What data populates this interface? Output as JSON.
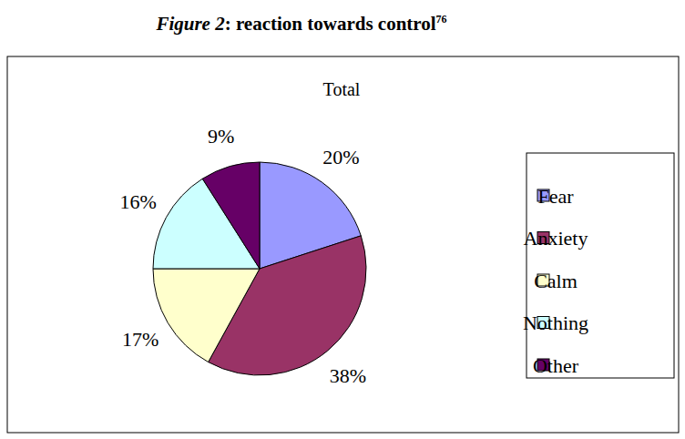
{
  "chart_data": {
    "type": "pie",
    "title": "Figure 2: reaction towards control",
    "title_footnote": "76",
    "subtitle": "Total",
    "categories": [
      "Fear",
      "Anxiety",
      "Calm",
      "Nothing",
      "Other"
    ],
    "values": [
      20,
      38,
      17,
      16,
      9
    ],
    "value_labels": [
      "20%",
      "38%",
      "17%",
      "16%",
      "9%"
    ],
    "colors": [
      "#9999ff",
      "#993366",
      "#ffffcc",
      "#ccffff",
      "#660066"
    ],
    "data_labels": true,
    "legend": "right"
  }
}
